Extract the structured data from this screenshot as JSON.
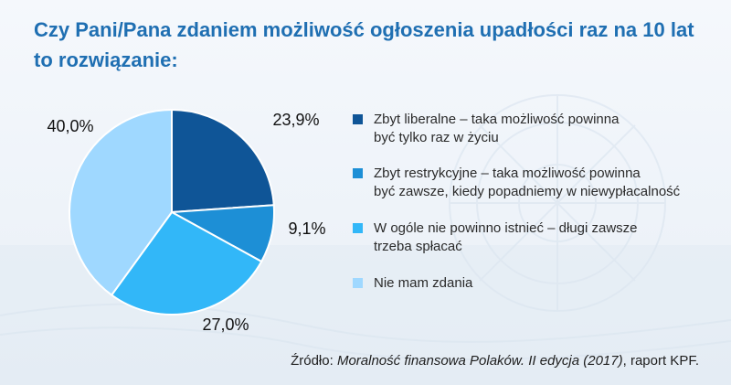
{
  "title_lines": [
    "Czy Pani/Pana zdaniem możliwość ogłoszenia upadłości raz na 10 lat",
    "to rozwiązanie:"
  ],
  "chart_data": {
    "type": "pie",
    "title": "Czy Pani/Pana zdaniem możliwość ogłoszenia upadłości raz na 10 lat to rozwiązanie:",
    "slices": [
      {
        "name": "Zbyt liberalne – taka możliwość powinna być tylko raz w życiu",
        "value": 23.9,
        "label": "23,9%",
        "color": "#0f5597"
      },
      {
        "name": "Zbyt restrykcyjne – taka możliwość powinna być zawsze, kiedy popadniemy w niewypłacalność",
        "value": 9.1,
        "label": "9,1%",
        "color": "#1d8fd6"
      },
      {
        "name": "W ogóle nie powinno istnieć – długi zawsze trzeba spłacać",
        "value": 27.0,
        "label": "27,0%",
        "color": "#32b7f8"
      },
      {
        "name": "Nie mam zdania",
        "value": 40.0,
        "label": "40,0%",
        "color": "#9fd8ff"
      }
    ],
    "legend_position": "right",
    "start": "top",
    "direction": "clockwise"
  },
  "legend": [
    {
      "lines": [
        "Zbyt liberalne – taka możliwość powinna",
        "być tylko raz w życiu"
      ]
    },
    {
      "lines": [
        "Zbyt restrykcyjne – taka możliwość powinna",
        "być zawsze, kiedy popadniemy w niewypłacalność"
      ]
    },
    {
      "lines": [
        "W ogóle nie powinno istnieć – długi zawsze",
        "trzeba spłacać"
      ]
    },
    {
      "lines": [
        "Nie mam zdania"
      ]
    }
  ],
  "source": {
    "prefix": "Źródło: ",
    "title": "Moralność finansowa Polaków. II edycja (2017)",
    "suffix": ", raport KPF."
  }
}
